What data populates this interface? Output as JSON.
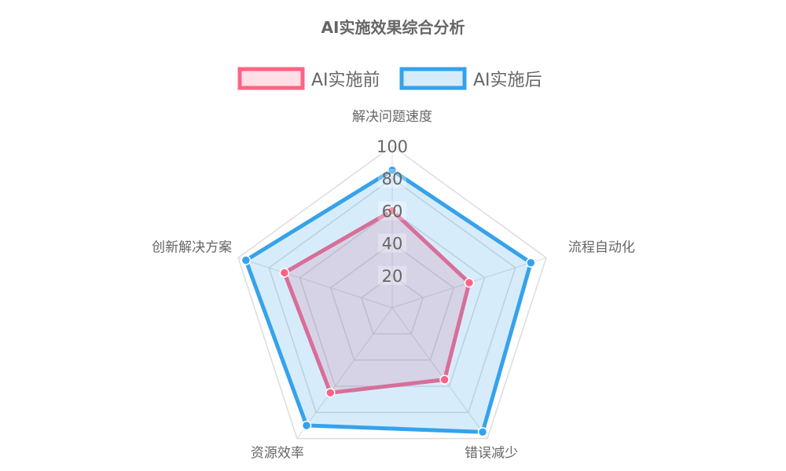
{
  "chart_data": {
    "type": "radar",
    "title": "AI实施效果综合分析",
    "categories": [
      "解决问题速度",
      "流程自动化",
      "错误减少",
      "资源效率",
      "创新解决方案"
    ],
    "series": [
      {
        "name": "AI实施前",
        "values": [
          60,
          50,
          55,
          65,
          70
        ],
        "color": "#ff6384",
        "fill": "rgba(255,99,132,0.2)"
      },
      {
        "name": "AI实施后",
        "values": [
          85,
          90,
          95,
          90,
          95
        ],
        "color": "#36a2eb",
        "fill": "rgba(54,162,235,0.2)"
      }
    ],
    "rlim": [
      0,
      100
    ],
    "ticks": [
      "20",
      "40",
      "60",
      "80",
      "100"
    ],
    "grid": true,
    "legend_position": "top"
  }
}
